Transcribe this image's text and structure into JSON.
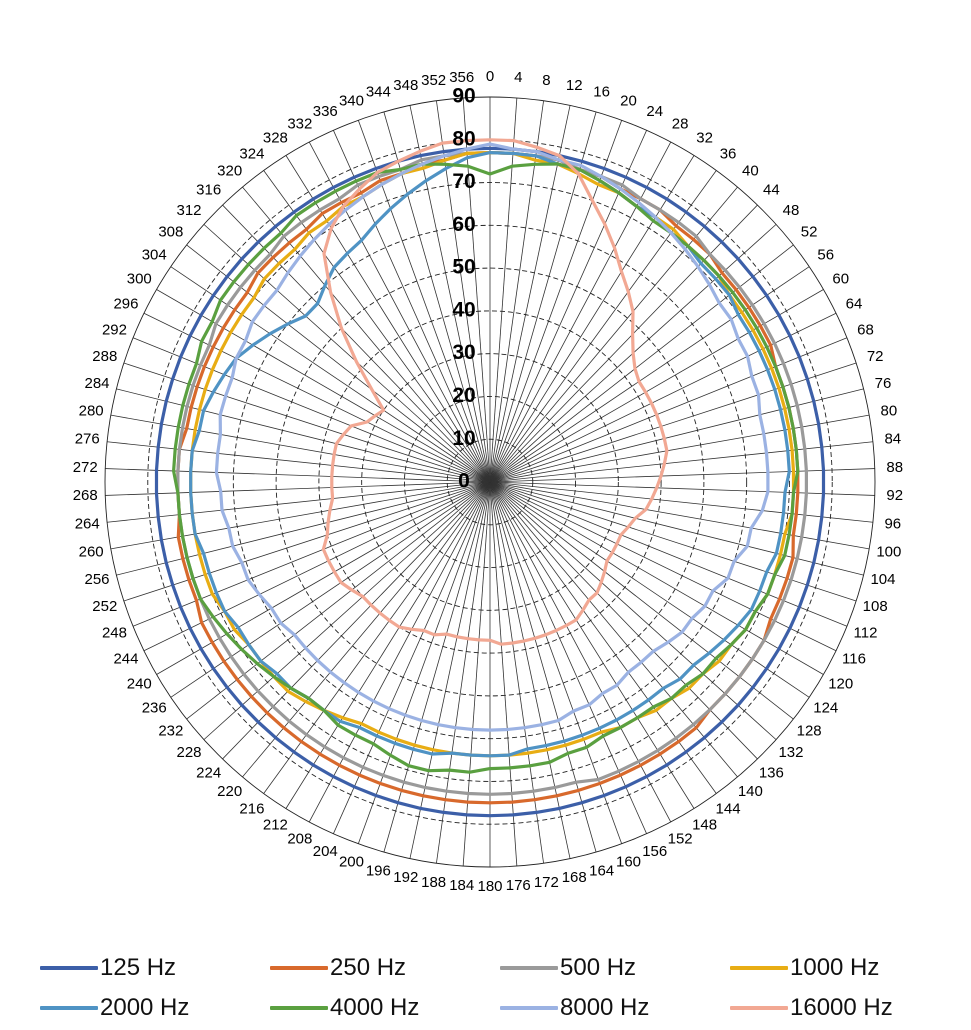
{
  "chart_data": {
    "type": "polar-line",
    "radial_range": [
      0,
      90
    ],
    "radial_ticks": [
      "0",
      "10",
      "20",
      "30",
      "40",
      "50",
      "60",
      "70",
      "80",
      "90"
    ],
    "angle_step": 4,
    "angle_labels": [
      "0",
      "4",
      "8",
      "12",
      "16",
      "20",
      "24",
      "28",
      "32",
      "36",
      "40",
      "44",
      "48",
      "52",
      "56",
      "60",
      "64",
      "68",
      "72",
      "76",
      "80",
      "84",
      "88",
      "92",
      "96",
      "100",
      "104",
      "108",
      "112",
      "116",
      "120",
      "124",
      "128",
      "132",
      "136",
      "140",
      "144",
      "148",
      "152",
      "156",
      "160",
      "164",
      "168",
      "172",
      "176",
      "180",
      "184",
      "188",
      "192",
      "196",
      "200",
      "204",
      "208",
      "212",
      "216",
      "220",
      "224",
      "228",
      "232",
      "236",
      "240",
      "244",
      "248",
      "252",
      "256",
      "260",
      "264",
      "268",
      "272",
      "276",
      "280",
      "284",
      "288",
      "292",
      "296",
      "300",
      "304",
      "308",
      "312",
      "316",
      "320",
      "324",
      "328",
      "332",
      "336",
      "340",
      "344",
      "348",
      "352",
      "356"
    ],
    "grid": true,
    "legend_position": "bottom",
    "series": [
      {
        "name": "125 Hz",
        "color": "#3c5fa8",
        "values": [
          78,
          78,
          78,
          78,
          78,
          78,
          78,
          78,
          78,
          78,
          78,
          78,
          78,
          78,
          78,
          78,
          78,
          78,
          78,
          78,
          78,
          78,
          78,
          78,
          78,
          78,
          78,
          78,
          78,
          78,
          78,
          78,
          78,
          78,
          78,
          78,
          78,
          78,
          78,
          78,
          78,
          78,
          78,
          78,
          78,
          78,
          78,
          78,
          78,
          78,
          78,
          78,
          78,
          78,
          78,
          78,
          78,
          78,
          78,
          78,
          78,
          78,
          78,
          78,
          78,
          78,
          78,
          78,
          78,
          78,
          78,
          78,
          78,
          78,
          78,
          78,
          78,
          78,
          78,
          78,
          78,
          78,
          78,
          78,
          78,
          78,
          78,
          78,
          78,
          78
        ]
      },
      {
        "name": "250 Hz",
        "color": "#d8692c",
        "values": [
          77,
          77,
          77,
          77,
          76,
          76,
          75,
          75,
          75,
          74,
          74,
          74,
          73,
          73,
          73,
          73,
          73,
          72,
          72,
          72,
          72,
          72,
          72,
          72,
          72,
          72,
          73,
          73,
          73,
          73,
          74,
          74,
          74,
          74,
          74,
          75,
          75,
          75,
          75,
          75,
          75,
          75,
          75,
          75,
          75,
          75,
          75,
          75,
          75,
          75,
          75,
          75,
          75,
          75,
          75,
          75,
          75,
          75,
          75,
          75,
          75,
          75,
          74,
          74,
          74,
          74,
          73,
          73,
          73,
          73,
          72,
          72,
          72,
          72,
          72,
          72,
          72,
          72,
          73,
          73,
          73,
          73,
          74,
          74,
          74,
          75,
          75,
          76,
          76,
          77
        ]
      },
      {
        "name": "500 Hz",
        "color": "#9a9a9a",
        "values": [
          77,
          77,
          77,
          77,
          76,
          76,
          76,
          75,
          75,
          75,
          75,
          74,
          74,
          74,
          74,
          74,
          74,
          74,
          74,
          74,
          74,
          74,
          74,
          74,
          74,
          74,
          74,
          74,
          74,
          74,
          74,
          74,
          74,
          74,
          74,
          74,
          74,
          74,
          74,
          74,
          74,
          73,
          73,
          73,
          73,
          73,
          73,
          73,
          73,
          73,
          73,
          73,
          73,
          73,
          73,
          73,
          73,
          73,
          73,
          73,
          73,
          73,
          73,
          73,
          73,
          73,
          73,
          73,
          73,
          73,
          73,
          73,
          73,
          73,
          73,
          74,
          74,
          74,
          74,
          74,
          75,
          75,
          75,
          75,
          76,
          76,
          76,
          77,
          77,
          77
        ]
      },
      {
        "name": "1000 Hz",
        "color": "#e8ad14",
        "values": [
          77,
          77,
          76,
          76,
          75,
          74,
          74,
          73,
          73,
          73,
          72,
          72,
          72,
          71,
          71,
          71,
          71,
          71,
          71,
          71,
          71,
          71,
          71,
          71,
          71,
          70,
          70,
          70,
          70,
          69,
          69,
          68,
          68,
          67,
          67,
          66,
          66,
          65,
          65,
          64,
          64,
          64,
          64,
          64,
          64,
          64,
          64,
          64,
          64,
          64,
          64,
          64,
          64,
          65,
          66,
          67,
          68,
          68,
          68,
          68,
          69,
          69,
          70,
          70,
          70,
          70,
          70,
          70,
          70,
          70,
          70,
          70,
          70,
          70,
          70,
          70,
          70,
          70,
          71,
          71,
          71,
          72,
          72,
          73,
          73,
          74,
          75,
          75,
          76,
          77
        ]
      },
      {
        "name": "2000 Hz",
        "color": "#4f93c4",
        "values": [
          77,
          77,
          77,
          76,
          76,
          75,
          74,
          73,
          73,
          72,
          72,
          71,
          71,
          71,
          70,
          70,
          70,
          70,
          70,
          70,
          70,
          70,
          70,
          69,
          69,
          69,
          69,
          68,
          68,
          68,
          67,
          66,
          65,
          64,
          64,
          63,
          63,
          63,
          63,
          63,
          63,
          63,
          63,
          63,
          64,
          64,
          64,
          64,
          65,
          65,
          65,
          65,
          65,
          66,
          66,
          66,
          67,
          67,
          68,
          68,
          68,
          69,
          69,
          69,
          69,
          70,
          70,
          70,
          70,
          70,
          69,
          69,
          68,
          67,
          66,
          64,
          62,
          60,
          58,
          58,
          60,
          62,
          63,
          64,
          66,
          68,
          70,
          72,
          74,
          76
        ]
      },
      {
        "name": "4000 Hz",
        "color": "#5aa040",
        "values": [
          72,
          74,
          75,
          76,
          76,
          75,
          74,
          73,
          72,
          72,
          72,
          72,
          72,
          72,
          72,
          72,
          72,
          72,
          72,
          72,
          72,
          72,
          72,
          71,
          71,
          71,
          71,
          70,
          70,
          69,
          69,
          68,
          67,
          67,
          66,
          66,
          65,
          65,
          65,
          65,
          66,
          66,
          67,
          67,
          67,
          67,
          68,
          68,
          69,
          69,
          68,
          67,
          67,
          67,
          66,
          66,
          67,
          68,
          69,
          70,
          71,
          72,
          73,
          73,
          73,
          73,
          73,
          73,
          74,
          74,
          74,
          74,
          74,
          74,
          75,
          75,
          76,
          76,
          76,
          76,
          76,
          77,
          77,
          77,
          77,
          77,
          76,
          76,
          75,
          74
        ]
      },
      {
        "name": "8000 Hz",
        "color": "#9bb2e3",
        "values": [
          79,
          78,
          78,
          77,
          77,
          76,
          75,
          74,
          73,
          72,
          71,
          70,
          69,
          68,
          68,
          67,
          67,
          66,
          66,
          65,
          65,
          65,
          65,
          65,
          64,
          62,
          62,
          60,
          60,
          58,
          58,
          57,
          57,
          56,
          55,
          55,
          55,
          56,
          56,
          57,
          57,
          58,
          58,
          58,
          58,
          58,
          58,
          58,
          58,
          58,
          58,
          58,
          58,
          58,
          58,
          58,
          58,
          58,
          58,
          59,
          59,
          60,
          61,
          61,
          62,
          62,
          63,
          63,
          64,
          64,
          64,
          65,
          65,
          65,
          66,
          66,
          67,
          67,
          67,
          68,
          69,
          70,
          71,
          72,
          73,
          74,
          75,
          76,
          77,
          78
        ]
      },
      {
        "name": "16000 Hz",
        "color": "#f2a893",
        "values": [
          80,
          80,
          79,
          78,
          75,
          70,
          66,
          62,
          58,
          55,
          52,
          48,
          45,
          43,
          42,
          42,
          42,
          42,
          42,
          42,
          42,
          41,
          40,
          39,
          38,
          37,
          35,
          34,
          33,
          33,
          33,
          33,
          34,
          35,
          36,
          36,
          37,
          38,
          38,
          38,
          38,
          38,
          38,
          38,
          38,
          37,
          37,
          37,
          37,
          37,
          38,
          38,
          39,
          40,
          40,
          40,
          40,
          40,
          41,
          42,
          42,
          42,
          42,
          40,
          39,
          38,
          37,
          37,
          37,
          37,
          37,
          37,
          36,
          35,
          32,
          31,
          30,
          35,
          42,
          50,
          58,
          66,
          70,
          73,
          75,
          77,
          78,
          79,
          80,
          80
        ]
      }
    ]
  }
}
